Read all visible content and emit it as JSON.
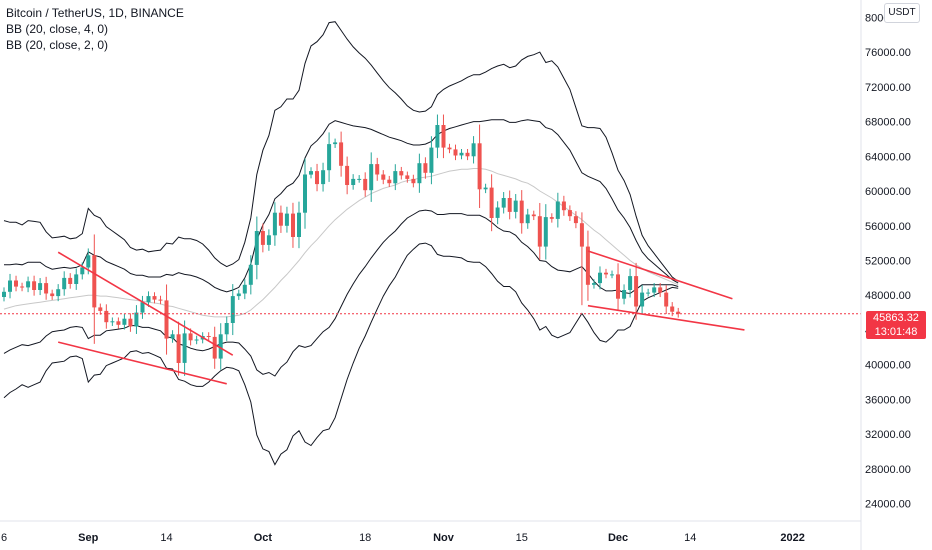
{
  "legend": {
    "symbol": "Bitcoin / TetherUS, 1D, BINANCE",
    "indicator1": "BB (20, close, 4, 0)",
    "indicator2": "BB (20, close, 2, 0)"
  },
  "currency_button": "USDT",
  "last_price": {
    "value": "45863.32",
    "countdown": "13:01:48",
    "color": "#f23645"
  },
  "colors": {
    "up": "#26a69a",
    "down": "#ef5350",
    "band": "#131722",
    "basis": "#c8c8c8",
    "trendline": "#f23645",
    "axis_text": "#131722"
  },
  "chart_data": {
    "type": "candlestick",
    "title": "Bitcoin / TetherUS, 1D, BINANCE",
    "y_ticks": [
      "80000.00",
      "76000.00",
      "72000.00",
      "68000.00",
      "64000.00",
      "60000.00",
      "56000.00",
      "52000.00",
      "48000.00",
      "44000.00",
      "40000.00",
      "36000.00",
      "32000.00",
      "28000.00",
      "24000.00"
    ],
    "ylim": [
      22000,
      82000
    ],
    "x_ticks": [
      "6",
      "Sep",
      "14",
      "Oct",
      "18",
      "Nov",
      "15",
      "Dec",
      "14",
      "2022"
    ],
    "bold_x_ticks": [
      "Sep",
      "Oct",
      "Nov",
      "Dec",
      "2022"
    ],
    "closes": [
      48400,
      49700,
      49000,
      48900,
      49600,
      48600,
      49400,
      48200,
      47900,
      48700,
      50000,
      49300,
      50400,
      51200,
      52600,
      46600,
      46200,
      44900,
      45000,
      44600,
      45300,
      44400,
      46000,
      47200,
      47900,
      47500,
      47400,
      43000,
      43500,
      40200,
      43600,
      42800,
      42900,
      43300,
      43200,
      40700,
      43500,
      44800,
      47900,
      48200,
      49200,
      51500,
      55400,
      53800,
      54900,
      57500,
      56000,
      57400,
      54700,
      57500,
      61900,
      62300,
      60800,
      62400,
      65400,
      65600,
      62900,
      60700,
      61400,
      61400,
      60100,
      63100,
      61900,
      61300,
      60900,
      62300,
      61800,
      61400,
      60900,
      63200,
      62100,
      65000,
      67600,
      65000,
      64800,
      64100,
      64400,
      64000,
      65500,
      60200,
      60400,
      56900,
      58100,
      59200,
      57600,
      58900,
      56300,
      57300,
      57100,
      53600,
      57000,
      56800,
      58800,
      57800,
      57100,
      56300,
      53600,
      49200,
      49400,
      50600,
      50400,
      50400,
      47600,
      48600,
      50200,
      46700,
      48300,
      48300,
      48900,
      48300,
      46700,
      46100,
      45863
    ],
    "bollinger_2": {
      "upper": [
        51500,
        51500,
        51600,
        51500,
        51800,
        51800,
        51800,
        51300,
        51000,
        51100,
        51200,
        51100,
        51200,
        51500,
        53000,
        52600,
        52400,
        51900,
        51600,
        51300,
        51000,
        50500,
        50300,
        50300,
        50100,
        50100,
        50100,
        50400,
        50300,
        50600,
        50400,
        50300,
        50100,
        49800,
        49400,
        48900,
        48600,
        48400,
        48600,
        48900,
        50000,
        51600,
        54400,
        56100,
        57300,
        59100,
        59700,
        60500,
        60900,
        61800,
        63800,
        65200,
        65800,
        66600,
        67700,
        68100,
        67900,
        67700,
        67500,
        67400,
        67300,
        67100,
        66800,
        66500,
        66200,
        66000,
        65800,
        65500,
        65300,
        65300,
        65400,
        65700,
        66500,
        66900,
        67200,
        67400,
        67600,
        67800,
        68000,
        68000,
        68100,
        68200,
        68200,
        68200,
        67900,
        67900,
        68100,
        68200,
        68100,
        68000,
        67300,
        67100,
        66500,
        65600,
        64700,
        63400,
        62100,
        61700,
        61400,
        61100,
        60300,
        59100,
        57800,
        56900,
        55800,
        54300,
        53000,
        52200,
        51600,
        51000,
        50400,
        49800,
        49400
      ],
      "middle": [
        46400,
        46600,
        46800,
        46900,
        47000,
        47100,
        47200,
        47300,
        47400,
        47500,
        47600,
        47700,
        47800,
        47900,
        48000,
        48000,
        47900,
        47900,
        47800,
        47700,
        47600,
        47500,
        47400,
        47300,
        47200,
        47100,
        47000,
        46800,
        46700,
        46500,
        46300,
        46100,
        45900,
        45700,
        45600,
        45500,
        45500,
        45500,
        45600,
        45700,
        45900,
        46300,
        46900,
        47500,
        48200,
        48900,
        49700,
        50400,
        51200,
        52000,
        52900,
        53700,
        54400,
        55200,
        56000,
        56700,
        57300,
        57900,
        58400,
        58900,
        59300,
        59700,
        60000,
        60300,
        60500,
        60700,
        61000,
        61200,
        61300,
        61500,
        61600,
        61700,
        61900,
        62100,
        62300,
        62400,
        62500,
        62500,
        62600,
        62600,
        62500,
        62300,
        62000,
        61800,
        61600,
        61400,
        61100,
        60900,
        60500,
        60000,
        59600,
        59200,
        58700,
        58200,
        57700,
        57200,
        56700,
        56100,
        55500,
        55000,
        54400,
        53800,
        53200,
        52600,
        52000,
        51500,
        51100,
        50700,
        50400,
        50100,
        49800,
        49500,
        49200
      ],
      "lower": [
        41300,
        41700,
        42000,
        42300,
        42200,
        42400,
        42600,
        43300,
        43800,
        43900,
        44000,
        44300,
        44400,
        44300,
        43000,
        43400,
        43400,
        43900,
        44000,
        44100,
        44200,
        44500,
        44500,
        44300,
        44300,
        44100,
        43900,
        43200,
        43100,
        42400,
        42200,
        41900,
        41700,
        41600,
        41800,
        42100,
        42400,
        42600,
        42600,
        42500,
        41800,
        41000,
        39400,
        38900,
        39100,
        38700,
        39700,
        40300,
        41500,
        42200,
        42000,
        42200,
        43000,
        43800,
        44300,
        45300,
        46700,
        48100,
        49300,
        50400,
        51300,
        52300,
        53200,
        54100,
        54800,
        55400,
        56200,
        56900,
        57300,
        57700,
        57800,
        57700,
        57300,
        57300,
        57400,
        57400,
        57400,
        57200,
        57200,
        57200,
        56900,
        56400,
        55800,
        55400,
        55300,
        54900,
        54100,
        53600,
        52900,
        52000,
        51900,
        51300,
        50900,
        50800,
        50700,
        51000,
        51300,
        50500,
        49600,
        48900,
        48500,
        48500,
        48600,
        48300,
        48200,
        48700,
        49200,
        49200,
        49200,
        49200,
        49200,
        49200,
        49000
      ]
    },
    "bollinger_4": {
      "upper": [
        56600,
        56400,
        56400,
        56100,
        56600,
        56500,
        56400,
        55300,
        54600,
        54700,
        54800,
        54500,
        54600,
        55100,
        58000,
        57200,
        56900,
        55900,
        55400,
        54900,
        54400,
        53500,
        53200,
        53300,
        53000,
        53100,
        53200,
        54000,
        53900,
        54700,
        54500,
        54500,
        54300,
        53900,
        53200,
        52300,
        51700,
        51300,
        51600,
        52100,
        54100,
        56900,
        61900,
        64700,
        66400,
        69300,
        69700,
        70600,
        70600,
        71600,
        74700,
        76700,
        77200,
        78000,
        79400,
        79500,
        78500,
        77500,
        76600,
        75900,
        75300,
        74500,
        73600,
        72700,
        71900,
        71300,
        70600,
        69800,
        69300,
        69100,
        69200,
        69700,
        71100,
        71700,
        72100,
        72400,
        72700,
        73100,
        73400,
        73400,
        73700,
        74100,
        74400,
        74600,
        74200,
        74400,
        75100,
        75500,
        75700,
        76000,
        74800,
        75000,
        74300,
        73000,
        71700,
        69600,
        67500,
        67300,
        67300,
        67200,
        66200,
        64400,
        62400,
        61200,
        59600,
        57100,
        54900,
        53700,
        52800,
        51900,
        51000,
        50100,
        49600
      ],
      "lower": [
        36200,
        36800,
        37200,
        37700,
        37400,
        37700,
        38000,
        39300,
        40200,
        40300,
        40400,
        40900,
        41000,
        40700,
        38000,
        38800,
        38900,
        39900,
        40200,
        40500,
        40800,
        41500,
        41600,
        41300,
        41400,
        41100,
        40800,
        39600,
        39500,
        38300,
        38100,
        37700,
        37500,
        37500,
        38000,
        38700,
        39300,
        39700,
        39600,
        39300,
        37700,
        35700,
        31900,
        30300,
        30000,
        28500,
        29700,
        30200,
        31800,
        32400,
        31100,
        30700,
        31600,
        32400,
        32600,
        33900,
        36100,
        38300,
        40200,
        41900,
        43300,
        44900,
        46400,
        47900,
        49100,
        50100,
        51400,
        52600,
        53300,
        53900,
        54000,
        53700,
        52700,
        52500,
        52500,
        52400,
        52300,
        51900,
        51800,
        51800,
        51300,
        50500,
        49600,
        49000,
        49000,
        48400,
        47100,
        46300,
        45300,
        44000,
        44400,
        43400,
        43100,
        43400,
        43700,
        44800,
        45900,
        44900,
        43700,
        42800,
        42600,
        43200,
        44000,
        44000,
        44400,
        45900,
        47300,
        47700,
        48000,
        48300,
        48600,
        48900,
        48800
      ]
    },
    "trendlines": [
      {
        "from": [
          "Sep 7",
          52950
        ],
        "to": [
          "Oct 6",
          41100
        ]
      },
      {
        "from": [
          "Sep 7",
          42600
        ],
        "to": [
          "Oct 5",
          37800
        ]
      },
      {
        "from": [
          "Dec 4",
          53100
        ],
        "to": [
          "Dec 28",
          47600
        ]
      },
      {
        "from": [
          "Dec 4",
          46800
        ],
        "to": [
          "Dec 30",
          44000
        ]
      }
    ],
    "last_price_line": 45863.32
  }
}
